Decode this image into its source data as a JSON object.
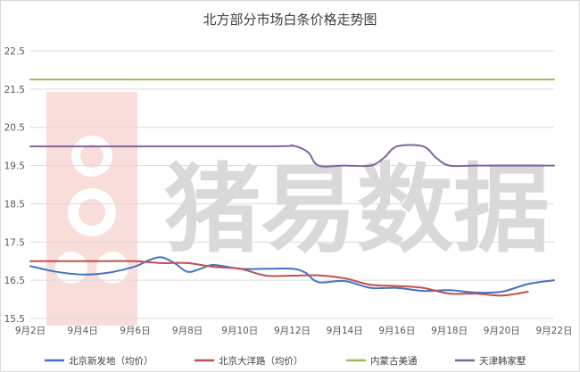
{
  "chart_data": {
    "type": "line",
    "title": "北方部分市场白条价格走势图",
    "xlabel": "",
    "ylabel": "",
    "ylim": [
      15.5,
      22.5
    ],
    "yticks": [
      "15.5",
      "16.5",
      "17.5",
      "18.5",
      "19.5",
      "20.5",
      "21.5",
      "22.5"
    ],
    "xlim": [
      2,
      22
    ],
    "xticks": [
      "9月2日",
      "9月4日",
      "9月6日",
      "9月8日",
      "9月10日",
      "9月12日",
      "9月14日",
      "9月16日",
      "9月18日",
      "9月20日",
      "9月22日"
    ],
    "grid": "horizontal",
    "legend_position": "bottom",
    "watermark": "猪易数据",
    "series": [
      {
        "name": "北京新发地（均价）",
        "color": "#4472c4",
        "points": [
          [
            2,
            16.87
          ],
          [
            3,
            16.72
          ],
          [
            4,
            16.65
          ],
          [
            5,
            16.7
          ],
          [
            6,
            16.86
          ],
          [
            6.5,
            17.02
          ],
          [
            7,
            17.1
          ],
          [
            7.5,
            16.95
          ],
          [
            8,
            16.72
          ],
          [
            8.5,
            16.8
          ],
          [
            9,
            16.9
          ],
          [
            10,
            16.8
          ],
          [
            11,
            16.8
          ],
          [
            12,
            16.8
          ],
          [
            12.5,
            16.7
          ],
          [
            13,
            16.45
          ],
          [
            14,
            16.48
          ],
          [
            15,
            16.3
          ],
          [
            16,
            16.3
          ],
          [
            17,
            16.22
          ],
          [
            18,
            16.24
          ],
          [
            19,
            16.18
          ],
          [
            20,
            16.2
          ],
          [
            21,
            16.4
          ],
          [
            22,
            16.5
          ]
        ]
      },
      {
        "name": "北京大洋路（均价）",
        "color": "#c0504d",
        "points": [
          [
            2,
            17.0
          ],
          [
            3,
            17.0
          ],
          [
            4,
            17.0
          ],
          [
            5,
            17.0
          ],
          [
            6,
            17.0
          ],
          [
            7,
            16.95
          ],
          [
            8,
            16.95
          ],
          [
            9,
            16.85
          ],
          [
            10,
            16.8
          ],
          [
            11,
            16.62
          ],
          [
            12,
            16.62
          ],
          [
            13,
            16.63
          ],
          [
            14,
            16.55
          ],
          [
            15,
            16.38
          ],
          [
            16,
            16.35
          ],
          [
            17,
            16.3
          ],
          [
            18,
            16.15
          ],
          [
            19,
            16.15
          ],
          [
            20,
            16.1
          ],
          [
            21,
            16.2
          ]
        ]
      },
      {
        "name": "内蒙古美通",
        "color": "#9bbb59",
        "points": [
          [
            2,
            21.75
          ],
          [
            22,
            21.75
          ]
        ]
      },
      {
        "name": "天津韩家墅",
        "color": "#8064a2",
        "points": [
          [
            2,
            20.0
          ],
          [
            11,
            20.0
          ],
          [
            12,
            20.02
          ],
          [
            12.6,
            19.85
          ],
          [
            13,
            19.5
          ],
          [
            14,
            19.5
          ],
          [
            15,
            19.5
          ],
          [
            15.5,
            19.7
          ],
          [
            16,
            20.0
          ],
          [
            17,
            20.0
          ],
          [
            17.5,
            19.7
          ],
          [
            18,
            19.5
          ],
          [
            19,
            19.5
          ],
          [
            20,
            19.5
          ],
          [
            21,
            19.5
          ],
          [
            22,
            19.5
          ]
        ]
      }
    ]
  }
}
